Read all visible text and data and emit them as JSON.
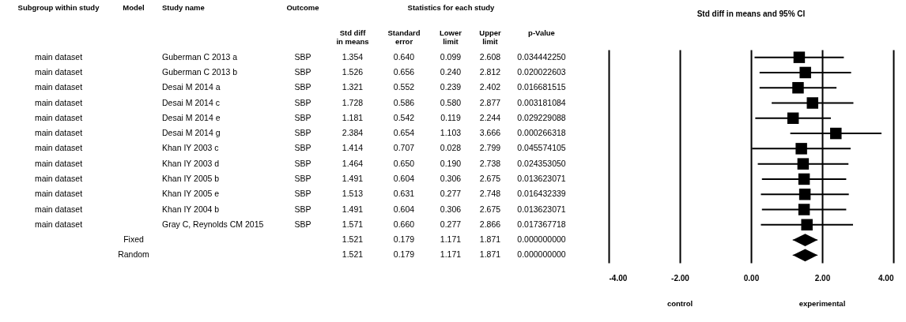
{
  "chart_data": [
    {
      "type": "other",
      "annotations": [
        "Statistics for each study"
      ],
      "categories": [
        "Subgroup within study",
        "Model",
        "Study name",
        "Outcome",
        "Std diff in means",
        "Standard error",
        "Lower limit",
        "Upper limit",
        "p-Value"
      ],
      "cell_labels": [
        [
          "main dataset",
          null,
          "Guberman C 2013 a",
          "SBP",
          "1.354",
          "0.640",
          "0.099",
          "2.608",
          "0.034442250"
        ],
        [
          "main dataset",
          null,
          "Guberman C 2013 b",
          "SBP",
          "1.526",
          "0.656",
          "0.240",
          "2.812",
          "0.020022603"
        ],
        [
          "main dataset",
          null,
          "Desai M 2014 a",
          "SBP",
          "1.321",
          "0.552",
          "0.239",
          "2.402",
          "0.016681515"
        ],
        [
          "main dataset",
          null,
          "Desai M 2014 c",
          "SBP",
          "1.728",
          "0.586",
          "0.580",
          "2.877",
          "0.003181084"
        ],
        [
          "main dataset",
          null,
          "Desai M 2014 e",
          "SBP",
          "1.181",
          "0.542",
          "0.119",
          "2.244",
          "0.029229088"
        ],
        [
          "main dataset",
          null,
          "Desai M 2014 g",
          "SBP",
          "2.384",
          "0.654",
          "1.103",
          "3.666",
          "0.000266318"
        ],
        [
          "main dataset",
          null,
          "Khan IY 2003 c",
          "SBP",
          "1.414",
          "0.707",
          "0.028",
          "2.799",
          "0.045574105"
        ],
        [
          "main dataset",
          null,
          "Khan IY 2003 d",
          "SBP",
          "1.464",
          "0.650",
          "0.190",
          "2.738",
          "0.024353050"
        ],
        [
          "main dataset",
          null,
          "Khan IY 2005 b",
          "SBP",
          "1.491",
          "0.604",
          "0.306",
          "2.675",
          "0.013623071"
        ],
        [
          "main dataset",
          null,
          "Khan IY 2005 e",
          "SBP",
          "1.513",
          "0.631",
          "0.277",
          "2.748",
          "0.016432339"
        ],
        [
          "main dataset",
          null,
          "Khan IY 2004 b",
          "SBP",
          "1.491",
          "0.604",
          "0.306",
          "2.675",
          "0.013623071"
        ],
        [
          "main dataset",
          null,
          "Gray C, Reynolds CM 2015",
          "SBP",
          "1.571",
          "0.660",
          "0.277",
          "2.866",
          "0.017367718"
        ],
        [
          null,
          "Fixed",
          null,
          null,
          "1.521",
          "0.179",
          "1.171",
          "1.871",
          "0.000000000"
        ],
        [
          null,
          "Random",
          null,
          null,
          "1.521",
          "0.179",
          "1.171",
          "1.871",
          "0.000000000"
        ]
      ]
    },
    {
      "type": "scatter",
      "title": "Std diff in means and 95% CI",
      "orientation": "horizontal",
      "categories": [
        null,
        null,
        null,
        null,
        null,
        null,
        null,
        null,
        null,
        null,
        null,
        null,
        null,
        null
      ],
      "series": [
        {
          "type": "scatter",
          "marker": "square",
          "color": "#000000",
          "values": [
            1.354,
            1.526,
            1.321,
            1.728,
            1.181,
            2.384,
            1.414,
            1.464,
            1.491,
            1.513,
            1.491,
            1.571,
            null,
            null
          ],
          "errors": [
            [
              0.099,
              2.608
            ],
            [
              0.24,
              2.812
            ],
            [
              0.239,
              2.402
            ],
            [
              0.58,
              2.877
            ],
            [
              0.119,
              2.244
            ],
            [
              1.103,
              3.666
            ],
            [
              0.028,
              2.799
            ],
            [
              0.19,
              2.738
            ],
            [
              0.306,
              2.675
            ],
            [
              0.277,
              2.748
            ],
            [
              0.306,
              2.675
            ],
            [
              0.277,
              2.866
            ],
            null,
            null
          ]
        },
        {
          "type": "scatter",
          "marker": "diamond",
          "color": "#000000",
          "values": [
            null,
            null,
            null,
            null,
            null,
            null,
            null,
            null,
            null,
            null,
            null,
            null,
            1.521,
            1.521
          ],
          "errors": [
            null,
            null,
            null,
            null,
            null,
            null,
            null,
            null,
            null,
            null,
            null,
            null,
            [
              1.171,
              1.871
            ],
            [
              1.171,
              1.871
            ]
          ]
        }
      ],
      "xlim": [
        -4,
        4
      ],
      "xticks": [
        {
          "value": -4,
          "label": "-4.00"
        },
        {
          "value": -2,
          "label": "-2.00"
        },
        {
          "value": 0,
          "label": "0.00"
        },
        {
          "value": 2,
          "label": "2.00"
        },
        {
          "value": 4,
          "label": "4.00"
        }
      ],
      "grid": "x",
      "tick_labels": "x",
      "annotations": [
        "control",
        "experimental"
      ]
    }
  ]
}
